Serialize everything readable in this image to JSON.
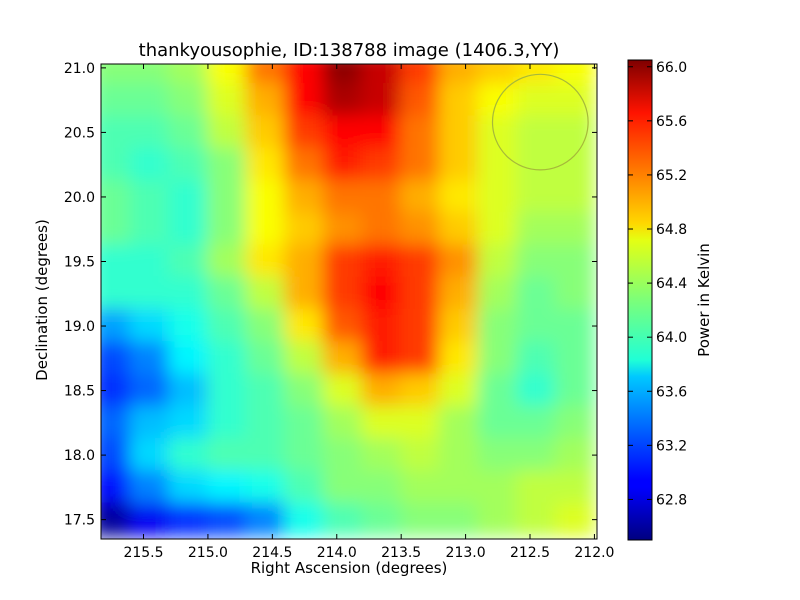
{
  "chart_data": {
    "type": "heatmap",
    "title": "thankyousophie, ID:138788 image (1406.3,YY)",
    "xlabel": "Right Ascension (degrees)",
    "ylabel": "Declination (degrees)",
    "xlim": [
      215.83,
      211.98
    ],
    "ylim": [
      17.35,
      21.03
    ],
    "xticks": [
      "215.5",
      "215.0",
      "214.5",
      "214.0",
      "213.5",
      "213.0",
      "212.5",
      "212.0"
    ],
    "xtick_values": [
      215.5,
      215.0,
      214.5,
      214.0,
      213.5,
      213.0,
      212.5,
      212.0
    ],
    "yticks": [
      "17.5",
      "18.0",
      "18.5",
      "19.0",
      "19.5",
      "20.0",
      "20.5",
      "21.0"
    ],
    "ytick_values": [
      17.5,
      18.0,
      18.5,
      19.0,
      19.5,
      20.0,
      20.5,
      21.0
    ],
    "colorbar": {
      "label": "Power in Kelvin",
      "colormap": "jet",
      "vmin": 62.5,
      "vmax": 66.05,
      "ticks": [
        "62.8",
        "63.2",
        "63.6",
        "64.0",
        "64.4",
        "64.8",
        "65.2",
        "65.6",
        "66.0"
      ],
      "tick_values": [
        62.8,
        63.2,
        63.6,
        64.0,
        64.4,
        64.8,
        65.2,
        65.6,
        66.0
      ]
    },
    "circle_marker": {
      "ra": 212.42,
      "dec": 20.58,
      "radius_deg": 0.37,
      "color": "#a6b93a"
    },
    "grid": false,
    "x_ra_samples": [
      215.75,
      215.45,
      215.15,
      214.85,
      214.55,
      214.25,
      213.95,
      213.65,
      213.35,
      213.05,
      212.75,
      212.45,
      212.15
    ],
    "y_dec_samples": [
      21.0,
      20.75,
      20.5,
      20.25,
      20.0,
      19.75,
      19.5,
      19.25,
      19.0,
      18.75,
      18.5,
      18.25,
      18.0,
      17.75,
      17.5
    ],
    "values": [
      [
        64.3,
        64.3,
        64.4,
        64.7,
        65.2,
        65.6,
        66.0,
        65.8,
        65.4,
        65.0,
        64.9,
        64.8,
        64.7
      ],
      [
        64.2,
        64.2,
        64.3,
        64.6,
        65.0,
        65.6,
        65.9,
        65.8,
        65.3,
        64.9,
        64.7,
        64.6,
        64.6
      ],
      [
        64.1,
        64.1,
        64.2,
        64.5,
        64.9,
        65.4,
        65.6,
        65.6,
        65.2,
        64.9,
        64.6,
        64.5,
        64.5
      ],
      [
        64.1,
        64.0,
        64.1,
        64.3,
        64.8,
        65.2,
        65.5,
        65.4,
        65.2,
        64.9,
        64.6,
        64.5,
        64.5
      ],
      [
        64.2,
        64.1,
        64.0,
        64.3,
        64.7,
        65.0,
        65.2,
        65.2,
        65.0,
        64.8,
        64.6,
        64.5,
        64.5
      ],
      [
        64.2,
        64.1,
        64.0,
        64.3,
        64.7,
        64.9,
        65.1,
        65.2,
        65.1,
        64.9,
        64.6,
        64.4,
        64.4
      ],
      [
        64.0,
        64.0,
        64.1,
        64.4,
        64.8,
        65.0,
        65.4,
        65.5,
        65.4,
        65.1,
        64.5,
        64.3,
        64.3
      ],
      [
        64.0,
        64.0,
        64.0,
        64.2,
        64.5,
        65.0,
        65.4,
        65.6,
        65.4,
        65.0,
        64.4,
        64.2,
        64.3
      ],
      [
        63.5,
        63.7,
        63.9,
        64.1,
        64.3,
        64.8,
        65.3,
        65.5,
        65.4,
        64.9,
        64.3,
        64.2,
        64.2
      ],
      [
        63.2,
        63.4,
        63.8,
        64.0,
        64.2,
        64.5,
        65.0,
        65.5,
        65.4,
        64.8,
        64.3,
        64.1,
        64.2
      ],
      [
        63.1,
        63.3,
        63.6,
        64.0,
        64.1,
        64.3,
        64.6,
        65.0,
        64.9,
        64.6,
        64.2,
        64.0,
        64.2
      ],
      [
        63.3,
        63.6,
        63.7,
        64.0,
        64.1,
        64.2,
        64.4,
        64.6,
        64.6,
        64.4,
        64.2,
        64.2,
        64.3
      ],
      [
        63.2,
        63.7,
        64.0,
        64.1,
        64.1,
        64.2,
        64.3,
        64.4,
        64.5,
        64.4,
        64.3,
        64.3,
        64.4
      ],
      [
        63.0,
        63.4,
        63.7,
        63.8,
        63.9,
        64.1,
        64.3,
        64.3,
        64.4,
        64.4,
        64.4,
        64.5,
        64.5
      ],
      [
        62.6,
        62.9,
        63.1,
        63.2,
        63.4,
        63.9,
        64.1,
        64.2,
        64.3,
        64.3,
        64.4,
        64.5,
        64.6
      ]
    ]
  }
}
